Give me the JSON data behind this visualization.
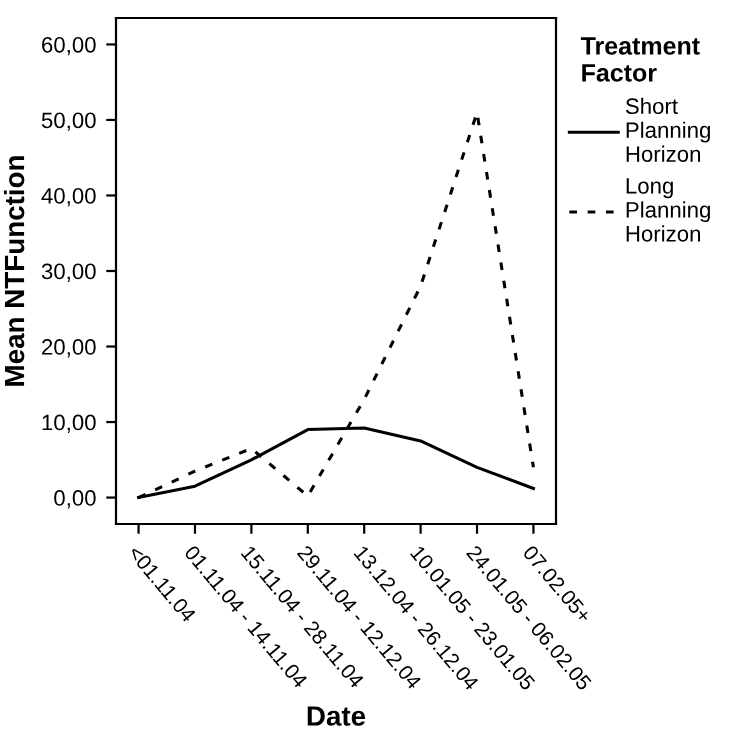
{
  "chart_data": {
    "type": "line",
    "xlabel": "Date",
    "ylabel": "Mean NTFunction",
    "legend_title": "Treatment\nFactor",
    "categories": [
      "<01.11.04",
      "01.11.04 - 14.11.04",
      "15.11.04 - 28.11.04",
      "29.11.04 - 12.12.04",
      "13.12.04 - 26.12.04",
      "10.01.05 - 23.01.05",
      "24.01.05 - 06.02.05",
      "07.02.05+"
    ],
    "series": [
      {
        "name": "Short\nPlanning\nHorizon",
        "color": "#000000",
        "line_style": "solid",
        "values": [
          0,
          1.5,
          5,
          9,
          9.2,
          7.5,
          4,
          1.2
        ]
      },
      {
        "name": "Long\nPlanning\nHorizon",
        "color": "#000000",
        "line_style": "dashed",
        "values": [
          0,
          3.5,
          6.5,
          0.2,
          13,
          28,
          51,
          4
        ]
      }
    ],
    "ylim": [
      -3.5,
      63.5
    ],
    "yticks": [
      {
        "value": 0,
        "label": "0,00"
      },
      {
        "value": 10,
        "label": "10,00"
      },
      {
        "value": 20,
        "label": "20,00"
      },
      {
        "value": 30,
        "label": "30,00"
      },
      {
        "value": 40,
        "label": "40,00"
      },
      {
        "value": 50,
        "label": "50,00"
      },
      {
        "value": 60,
        "label": "60,00"
      }
    ],
    "grid": false,
    "legend": "right",
    "marker": "none"
  }
}
